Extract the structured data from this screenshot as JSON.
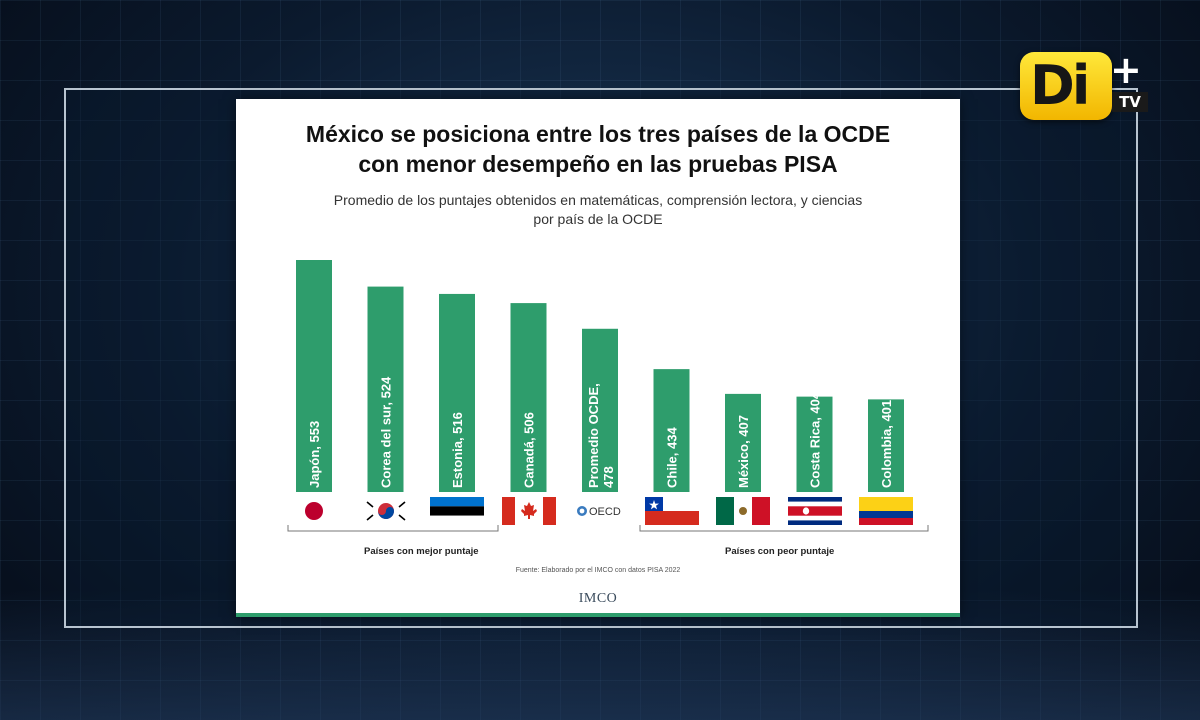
{
  "broadcast": {
    "logo_text": "Di",
    "logo_plus": "+",
    "logo_tv": "TV"
  },
  "slide": {
    "title": "México se posiciona entre los tres países de la OCDE\ncon menor desempeño en las pruebas PISA",
    "subtitle": "Promedio de los puntajes obtenidos en matemáticas, comprensión lectora, y ciencias\npor país de la OCDE",
    "group_best": "Países con mejor puntaje",
    "group_worst": "Países con peor puntaje",
    "source": "Fuente: Elaborado por el IMCO con datos PISA 2022",
    "footer_logo": "IMCO",
    "oecd_mark": "OECD"
  },
  "colors": {
    "bar": "#2e9d6c",
    "bar_label": "#ffffff"
  },
  "chart_data": {
    "type": "bar",
    "title": "México se posiciona entre los tres países de la OCDE con menor desempeño en las pruebas PISA",
    "subtitle": "Promedio de los puntajes obtenidos en matemáticas, comprensión lectora, y ciencias por país de la OCDE",
    "categories": [
      "Japón",
      "Corea del sur",
      "Estonia",
      "Canadá",
      "Promedio OCDE",
      "Chile",
      "México",
      "Costa Rica",
      "Colombia"
    ],
    "values": [
      553,
      524,
      516,
      506,
      478,
      434,
      407,
      404,
      401
    ],
    "bar_labels": [
      "Japón, 553",
      "Corea del sur, 524",
      "Estonia, 516",
      "Canadá, 506",
      "Promedio OCDE,\n478",
      "Chile, 434",
      "México, 407",
      "Costa Rica, 404",
      "Colombia, 401"
    ],
    "flags": [
      "japan",
      "south-korea",
      "estonia",
      "canada",
      "oecd",
      "chile",
      "mexico",
      "costa-rica",
      "colombia"
    ],
    "xlabel": "",
    "ylabel": "",
    "grid": false
  }
}
